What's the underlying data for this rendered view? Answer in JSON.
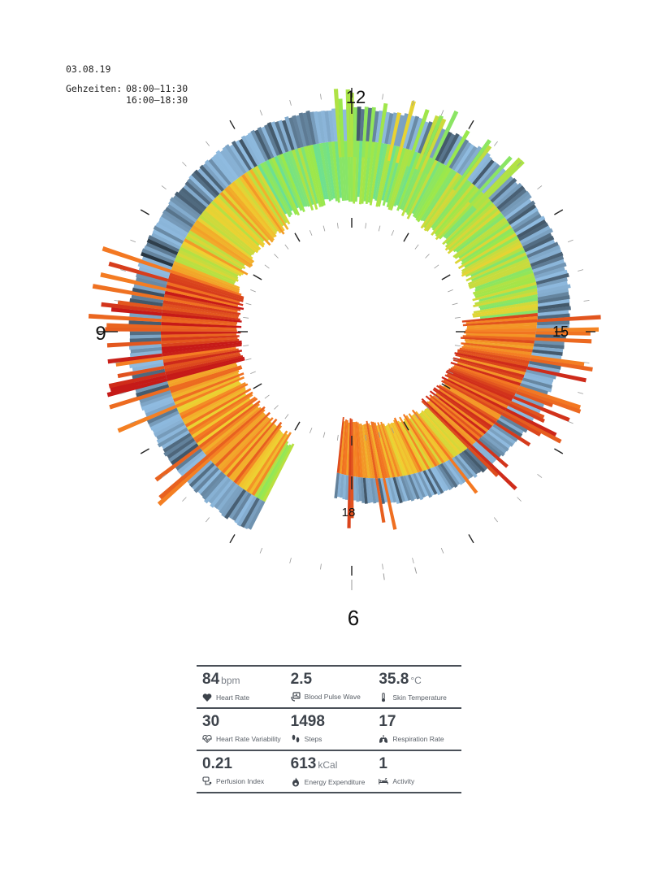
{
  "meta": {
    "date": "03.08.19",
    "walk_label": "Gehzeiten:",
    "walk_times": [
      "08:00–11:30",
      "16:00–18:30"
    ]
  },
  "chart_data": {
    "type": "radial-spiral-heatmap",
    "hour_labels": [
      "12",
      "15",
      "18",
      "6",
      "9"
    ],
    "time_range_hours": [
      6,
      18.5
    ],
    "colors": {
      "calm": "#8fbbe0",
      "deep": "#27343f",
      "low_activity": "#6ee090",
      "moderate": "#9ae84c",
      "elevated": "#f0d030",
      "high": "#f47a22",
      "peak": "#c61a18"
    }
  },
  "stats": [
    [
      {
        "value": "84",
        "unit": "bpm",
        "label": "Heart Rate",
        "icon": "heart-icon"
      },
      {
        "value": "2.5",
        "unit": "",
        "label": "Blood Pulse Wave",
        "icon": "pulse-wave-icon"
      },
      {
        "value": "35.8",
        "unit": "°C",
        "label": "Skin Temperature",
        "icon": "thermometer-icon"
      }
    ],
    [
      {
        "value": "30",
        "unit": "",
        "label": "Heart Rate Variability",
        "icon": "heart-rate-icon"
      },
      {
        "value": "1498",
        "unit": "",
        "label": "Steps",
        "icon": "footsteps-icon"
      },
      {
        "value": "17",
        "unit": "",
        "label": "Respiration Rate",
        "icon": "lungs-icon"
      }
    ],
    [
      {
        "value": "0.21",
        "unit": "",
        "label": "Perfusion Index",
        "icon": "perfusion-icon"
      },
      {
        "value": "613",
        "unit": "kCal",
        "label": "Energy Expenditure",
        "icon": "flame-icon"
      },
      {
        "value": "1",
        "unit": "",
        "label": "Activity",
        "icon": "bed-icon"
      }
    ]
  ]
}
